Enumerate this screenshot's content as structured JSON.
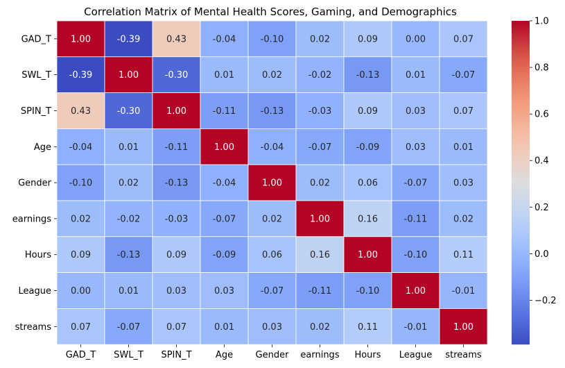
{
  "chart_data": {
    "type": "heatmap",
    "title": "Correlation Matrix of Mental Health Scores, Gaming, and Demographics",
    "x_labels": [
      "GAD_T",
      "SWL_T",
      "SPIN_T",
      "Age",
      "Gender",
      "earnings",
      "Hours",
      "League",
      "streams"
    ],
    "y_labels": [
      "GAD_T",
      "SWL_T",
      "SPIN_T",
      "Age",
      "Gender",
      "earnings",
      "Hours",
      "League",
      "streams"
    ],
    "values": [
      [
        1.0,
        -0.39,
        0.43,
        -0.04,
        -0.1,
        0.02,
        0.09,
        0.0,
        0.07
      ],
      [
        -0.39,
        1.0,
        -0.3,
        0.01,
        0.02,
        -0.02,
        -0.13,
        0.01,
        -0.07
      ],
      [
        0.43,
        -0.3,
        1.0,
        -0.11,
        -0.13,
        -0.03,
        0.09,
        0.03,
        0.07
      ],
      [
        -0.04,
        0.01,
        -0.11,
        1.0,
        -0.04,
        -0.07,
        -0.09,
        0.03,
        0.01
      ],
      [
        -0.1,
        0.02,
        -0.13,
        -0.04,
        1.0,
        0.02,
        0.06,
        -0.07,
        0.03
      ],
      [
        0.02,
        -0.02,
        -0.03,
        -0.07,
        0.02,
        1.0,
        0.16,
        -0.11,
        0.02
      ],
      [
        0.09,
        -0.13,
        0.09,
        -0.09,
        0.06,
        0.16,
        1.0,
        -0.1,
        0.11
      ],
      [
        0.0,
        0.01,
        0.03,
        0.03,
        -0.07,
        -0.11,
        -0.1,
        1.0,
        -0.01
      ],
      [
        0.07,
        -0.07,
        0.07,
        0.01,
        0.03,
        0.02,
        0.11,
        -0.01,
        1.0
      ]
    ],
    "value_format": "2 decimals",
    "colormap": "coolwarm",
    "color_range": [
      -0.39,
      1.0
    ],
    "colorbar": {
      "ticks": [
        -0.2,
        0.0,
        0.2,
        0.4,
        0.6,
        0.8,
        1.0
      ],
      "tick_labels": [
        "−0.2",
        "0.0",
        "0.2",
        "0.4",
        "0.6",
        "0.8",
        "1.0"
      ]
    },
    "cell_border_color": "#ffffff",
    "grid": false,
    "legend": "colorbar-right"
  }
}
